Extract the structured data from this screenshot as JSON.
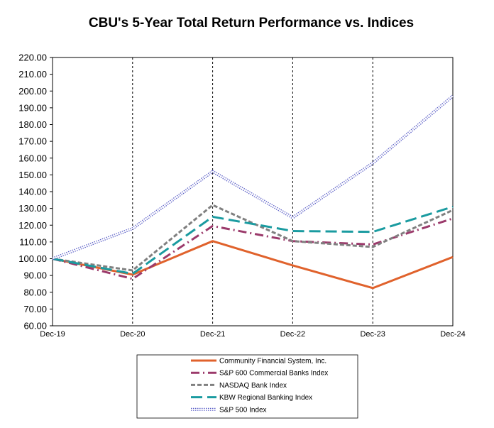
{
  "chart_data": {
    "type": "line",
    "title": "CBU's 5-Year Total Return Performance vs. Indices",
    "xlabel": "",
    "ylabel": "",
    "categories": [
      "Dec-19",
      "Dec-20",
      "Dec-21",
      "Dec-22",
      "Dec-23",
      "Dec-24"
    ],
    "y_ticks": [
      "60.00",
      "70.00",
      "80.00",
      "90.00",
      "100.00",
      "110.00",
      "120.00",
      "130.00",
      "140.00",
      "150.00",
      "160.00",
      "170.00",
      "180.00",
      "190.00",
      "200.00",
      "210.00",
      "220.00"
    ],
    "ylim": [
      60,
      220
    ],
    "grid": "vertical dashed",
    "legend_position": "bottom",
    "series": [
      {
        "name": "Community Financial System, Inc.",
        "color": "#e0622c",
        "style": "solid",
        "values": [
          100,
          90.5,
          110.5,
          96,
          82.5,
          101
        ]
      },
      {
        "name": "S&P 600 Commercial Banks Index",
        "color": "#9b3a6b",
        "style": "dashdot",
        "values": [
          100,
          88,
          119.5,
          110.5,
          108.5,
          124
        ]
      },
      {
        "name": "NASDAQ Bank Index",
        "color": "#808080",
        "style": "dashed",
        "values": [
          100,
          93,
          132,
          110.5,
          107,
          129
        ]
      },
      {
        "name": "KBW Regional Banking Index",
        "color": "#1a9ba0",
        "style": "longdash",
        "values": [
          100,
          91,
          125,
          116.5,
          116,
          131
        ]
      },
      {
        "name": "S&P 500 Index",
        "color": "#5b5fc7",
        "style": "double",
        "values": [
          100,
          118,
          152,
          124.5,
          157,
          197
        ]
      }
    ]
  }
}
